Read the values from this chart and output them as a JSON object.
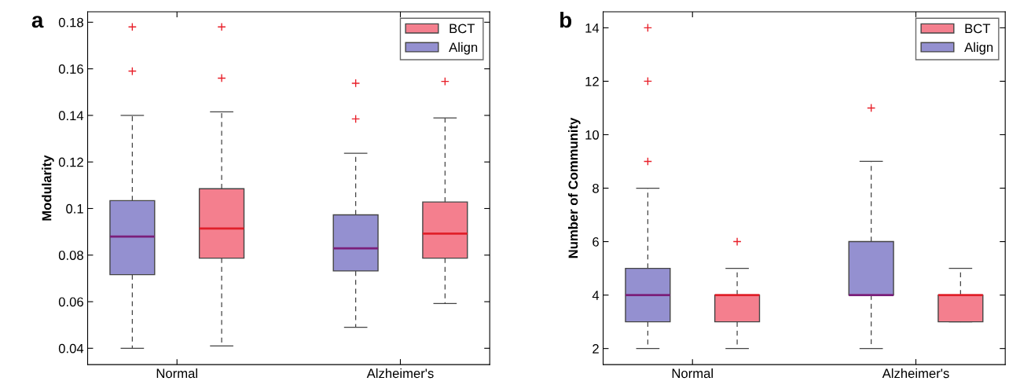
{
  "chart_data": [
    {
      "type": "box",
      "annotations": [
        "a"
      ],
      "ylabel": "Modularity",
      "categories": [
        "Normal",
        "Alzheimer's"
      ],
      "ylim": [
        0.033,
        0.1845
      ],
      "yticks": [
        0.04,
        0.06,
        0.08,
        {
          "value": 0.1,
          "label": "0.1"
        },
        0.12,
        0.14,
        0.16,
        0.18
      ],
      "legend": "top right",
      "grid": false,
      "series": [
        {
          "name": "Align",
          "color": "#9490d0",
          "boxes": [
            {
              "low": 0.04,
              "q1": 0.0716,
              "median": 0.088,
              "q3": 0.1034,
              "high": 0.14,
              "outliers": [
                0.178,
                0.159
              ]
            },
            {
              "low": 0.049,
              "q1": 0.0732,
              "median": 0.0829,
              "q3": 0.0973,
              "high": 0.1237,
              "outliers": [
                0.1538,
                0.1385
              ]
            }
          ]
        },
        {
          "name": "BCT",
          "color": "#f47f8e",
          "boxes": [
            {
              "low": 0.041,
              "q1": 0.0787,
              "median": 0.0914,
              "q3": 0.1085,
              "high": 0.1415,
              "outliers": [
                0.178,
                0.156
              ]
            },
            {
              "low": 0.0592,
              "q1": 0.0787,
              "median": 0.0892,
              "q3": 0.1028,
              "high": 0.1389,
              "outliers": [
                0.1546
              ]
            }
          ]
        }
      ]
    },
    {
      "type": "box",
      "annotations": [
        "b"
      ],
      "ylabel": "Number of Community",
      "categories": [
        "Normal",
        "Alzheimer's"
      ],
      "ylim": [
        1.4,
        14.6
      ],
      "yticks": [
        2,
        4,
        6,
        8,
        10,
        12,
        14
      ],
      "legend": "top right",
      "grid": false,
      "series": [
        {
          "name": "Align",
          "color": "#9490d0",
          "boxes": [
            {
              "low": 2,
              "q1": 3,
              "median": 4,
              "q3": 5,
              "high": 8,
              "outliers": [
                9,
                12,
                14
              ]
            },
            {
              "low": 2,
              "q1": 4,
              "median": 4,
              "q3": 6,
              "high": 9,
              "outliers": [
                11
              ]
            }
          ]
        },
        {
          "name": "BCT",
          "color": "#f47f8e",
          "boxes": [
            {
              "low": 2,
              "q1": 3,
              "median": 4,
              "q3": 4,
              "high": 5,
              "outliers": [
                6
              ]
            },
            {
              "low": 3,
              "q1": 3,
              "median": 4,
              "q3": 4,
              "high": 5
            }
          ]
        }
      ]
    }
  ]
}
